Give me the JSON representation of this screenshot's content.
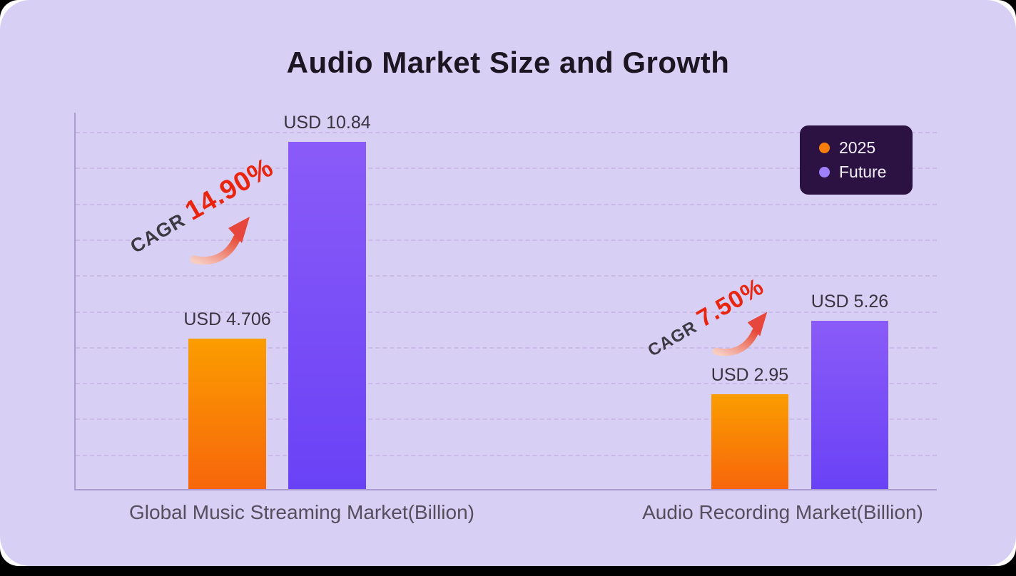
{
  "title": "Audio Market Size and Growth",
  "legend": {
    "items": [
      {
        "label": "2025",
        "color": "#f97d0b"
      },
      {
        "label": "Future",
        "color": "#a080fa"
      }
    ],
    "background": "#2b1242"
  },
  "chart_data": {
    "type": "bar",
    "title": "Audio Market Size and Growth",
    "categories": [
      "Global Music Streaming Market(Billion)",
      "Audio Recording Market(Billion)"
    ],
    "series": [
      {
        "name": "2025",
        "values": [
          4.706,
          2.95
        ],
        "color_top": "#fb9d00",
        "color_bottom": "#f7660b"
      },
      {
        "name": "Future",
        "values": [
          10.84,
          5.26
        ],
        "color_top": "#8a5bf8",
        "color_bottom": "#6a42f6"
      }
    ],
    "value_labels": [
      [
        "USD 4.706",
        "USD 2.95"
      ],
      [
        "USD 10.84",
        "USD 5.26"
      ]
    ],
    "annotations": [
      {
        "prefix": "CAGR ",
        "value": "14.90%"
      },
      {
        "prefix": "CAGR ",
        "value": "7.50%"
      }
    ],
    "xlabel": "",
    "ylabel": "",
    "ylim": [
      0,
      11.8
    ],
    "grid": true,
    "gridline_count": 10,
    "legend_position": "top-right"
  },
  "colors": {
    "card_background": "#d7cff4",
    "frame_background": "#ffffff",
    "axis": "#aa9cd2",
    "gridline": "#c9bae8",
    "title_text": "#1b1622",
    "value_label_text": "#39343f",
    "axis_label_text": "#544e5d",
    "cagr_text": "#3c3943",
    "cagr_accent": "#e9250f",
    "arrow_start": "#f7cdc2",
    "arrow_end": "#e74c38"
  }
}
